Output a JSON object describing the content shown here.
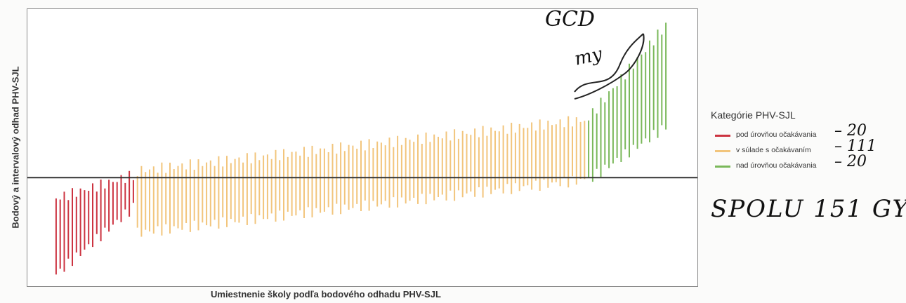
{
  "chart_data": {
    "type": "interval",
    "title": "",
    "xlabel": "Umiestnenie školy podľa bodového odhadu PHV-SJL",
    "ylabel": "Bodový a intervalový odhad PHV-SJL",
    "reference_line": 0,
    "ylim": [
      -2.2,
      3.5
    ],
    "grid": false,
    "legend": {
      "title": "Kategórie PHV-SJL",
      "placement": "right",
      "entries": [
        {
          "label": "pod úrovňou očakávania",
          "color": "#cc3340",
          "handwritten_count": "– 20"
        },
        {
          "label": "v súlade s očakávaním",
          "color": "#f2c57c",
          "handwritten_count": "– 111"
        },
        {
          "label": "nad úrovňou očakávania",
          "color": "#7ab85a",
          "handwritten_count": "– 20"
        }
      ]
    },
    "series": [
      {
        "category": "pod úrovňou očakávania",
        "color": "#cc3340",
        "count": 20,
        "x_start": 1,
        "lower_start": -2.1,
        "lower_end": -0.65,
        "upper_start": -0.45,
        "upper_end": 0.05
      },
      {
        "category": "v súlade s očakávaním",
        "color": "#f2c57c",
        "count": 111,
        "x_start": 21,
        "lower_start": -1.2,
        "lower_end": -0.05,
        "upper_start": 0.15,
        "upper_end": 1.25
      },
      {
        "category": "nad úrovňou očakávania",
        "color": "#7ab85a",
        "count": 20,
        "x_start": 132,
        "lower_start": -0.05,
        "lower_end": 1.1,
        "upper_start": 1.3,
        "upper_end": 3.3
      }
    ]
  },
  "annotations": {
    "handwritten_total": "SPOLU 151 GY",
    "signature_initials": "GCD",
    "signature_scrawl": "my"
  }
}
